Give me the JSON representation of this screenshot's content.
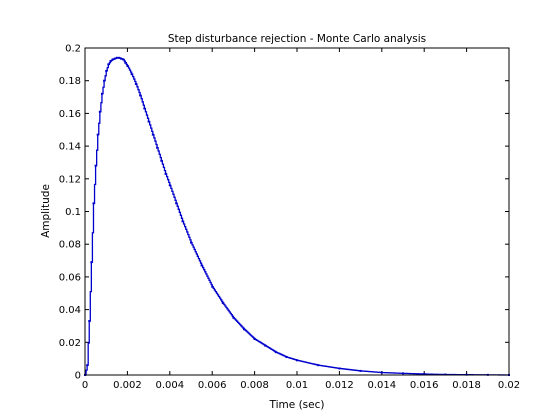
{
  "chart_data": {
    "type": "line",
    "title": "Step disturbance rejection - Monte Carlo analysis",
    "xlabel": "Time (sec)",
    "ylabel": "Amplitude",
    "xlim": [
      0,
      0.02
    ],
    "ylim": [
      0,
      0.2
    ],
    "xticks": [
      0,
      0.002,
      0.004,
      0.006,
      0.008,
      0.01,
      0.012,
      0.014,
      0.016,
      0.018,
      0.02
    ],
    "xtick_labels": [
      "0",
      "0.002",
      "0.004",
      "0.006",
      "0.008",
      "0.01",
      "0.012",
      "0.014",
      "0.016",
      "0.018",
      "0.02"
    ],
    "yticks": [
      0,
      0.02,
      0.04,
      0.06,
      0.08,
      0.1,
      0.12,
      0.14,
      0.16,
      0.18,
      0.2
    ],
    "ytick_labels": [
      "0",
      "0.02",
      "0.04",
      "0.06",
      "0.08",
      "0.1",
      "0.12",
      "0.14",
      "0.16",
      "0.18",
      "0.2"
    ],
    "grid": false,
    "style": "stairs",
    "series": [
      {
        "color": "#0000cc",
        "x": [
          0,
          0.0001,
          0.0002,
          0.0003,
          0.0004,
          0.0005,
          0.0006,
          0.0007,
          0.0008,
          0.0009,
          0.001,
          0.0011,
          0.0012,
          0.0013,
          0.0014,
          0.0015,
          0.0016,
          0.0017,
          0.0018,
          0.0019,
          0.002,
          0.0022,
          0.0024,
          0.0026,
          0.0028,
          0.003,
          0.0032,
          0.0034,
          0.0036,
          0.0038,
          0.004,
          0.0043,
          0.0046,
          0.005,
          0.0055,
          0.006,
          0.0065,
          0.007,
          0.0075,
          0.008,
          0.0085,
          0.009,
          0.0095,
          0.01,
          0.011,
          0.012,
          0.013,
          0.014,
          0.015,
          0.016,
          0.017,
          0.018,
          0.019,
          0.02
        ],
        "y": [
          0,
          0.006,
          0.033,
          0.069,
          0.105,
          0.128,
          0.147,
          0.161,
          0.172,
          0.18,
          0.186,
          0.19,
          0.192,
          0.193,
          0.1935,
          0.194,
          0.194,
          0.1935,
          0.193,
          0.191,
          0.189,
          0.184,
          0.178,
          0.171,
          0.163,
          0.155,
          0.147,
          0.139,
          0.131,
          0.123,
          0.116,
          0.105,
          0.094,
          0.081,
          0.067,
          0.054,
          0.044,
          0.035,
          0.028,
          0.022,
          0.018,
          0.014,
          0.011,
          0.009,
          0.006,
          0.004,
          0.0025,
          0.0015,
          0.001,
          0.0006,
          0.0003,
          0.0002,
          0.0001,
          0
        ]
      }
    ]
  }
}
